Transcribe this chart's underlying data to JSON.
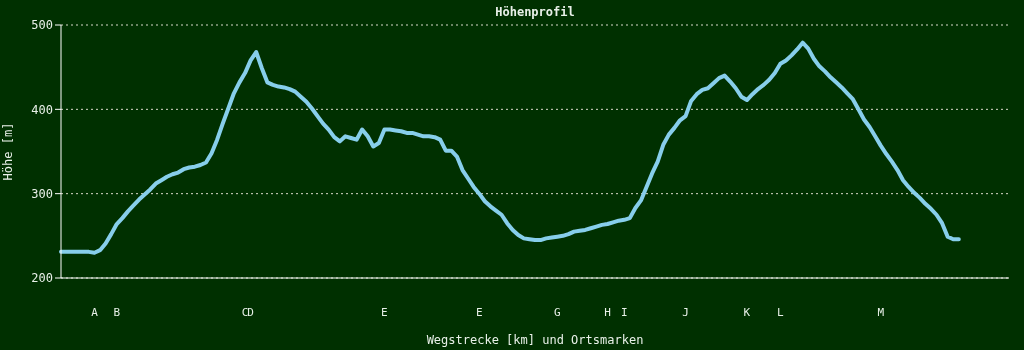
{
  "chart_data": {
    "type": "line",
    "title": "Höhenprofil",
    "xlabel": "Wegstrecke [km] und Ortsmarken",
    "ylabel": "Höhe [m]",
    "categories": [
      null,
      null,
      null,
      null,
      null,
      null,
      "A",
      null,
      null,
      null,
      "B",
      null,
      null,
      null,
      null,
      null,
      null,
      null,
      null,
      null,
      null,
      null,
      null,
      null,
      null,
      null,
      null,
      null,
      null,
      null,
      null,
      null,
      null,
      "C",
      "D",
      null,
      null,
      null,
      null,
      null,
      null,
      null,
      null,
      null,
      null,
      null,
      null,
      null,
      null,
      null,
      null,
      null,
      null,
      null,
      null,
      null,
      null,
      null,
      "E",
      null,
      null,
      null,
      null,
      null,
      null,
      null,
      null,
      null,
      null,
      null,
      null,
      null,
      null,
      null,
      null,
      "E",
      null,
      null,
      null,
      null,
      null,
      null,
      null,
      null,
      null,
      null,
      null,
      null,
      null,
      "G",
      null,
      null,
      null,
      null,
      null,
      null,
      null,
      null,
      "H",
      null,
      null,
      "I",
      null,
      null,
      null,
      null,
      null,
      null,
      null,
      null,
      null,
      null,
      "J",
      null,
      null,
      null,
      null,
      null,
      null,
      null,
      null,
      null,
      null,
      "K",
      null,
      null,
      null,
      null,
      null,
      "L",
      null,
      null,
      null,
      null,
      null,
      null,
      null,
      null,
      null,
      null,
      null,
      null,
      null,
      null,
      null,
      null,
      null,
      "M",
      null,
      null,
      null,
      null,
      null,
      null,
      null,
      null,
      null,
      null,
      null,
      null,
      null,
      null,
      null,
      null,
      null,
      null,
      null,
      null,
      null,
      null,
      null
    ],
    "series": [
      {
        "color": "#87ceeb",
        "values": [
          231,
          231,
          231,
          231,
          231,
          231,
          230,
          233,
          241,
          252,
          264,
          271,
          279,
          286,
          293,
          299,
          305,
          312,
          316,
          320,
          323,
          325,
          329,
          331,
          332,
          334,
          337,
          348,
          364,
          383,
          401,
          419,
          432,
          443,
          458,
          468,
          449,
          432,
          429,
          427,
          426,
          424,
          421,
          415,
          409,
          401,
          392,
          383,
          376,
          367,
          362,
          368,
          366,
          364,
          376,
          368,
          356,
          360,
          376,
          376,
          375,
          374,
          372,
          372,
          370,
          368,
          368,
          367,
          364,
          351,
          351,
          344,
          328,
          318,
          308,
          300,
          291,
          285,
          280,
          275,
          265,
          257,
          251,
          247,
          246,
          245,
          245,
          247,
          248,
          249,
          250,
          252,
          255,
          256,
          257,
          259,
          261,
          263,
          264,
          266,
          268,
          269,
          271,
          283,
          292,
          308,
          324,
          338,
          358,
          370,
          378,
          387,
          392,
          410,
          418,
          423,
          425,
          431,
          437,
          440,
          433,
          425,
          415,
          411,
          418,
          424,
          429,
          435,
          443,
          454,
          458,
          464,
          471,
          479,
          472,
          460,
          451,
          445,
          438,
          432,
          426,
          419,
          412,
          400,
          388,
          379,
          368,
          357,
          347,
          338,
          328,
          316,
          308,
          301,
          295,
          288,
          282,
          275,
          265,
          249,
          246,
          246,
          null,
          null,
          null,
          null,
          null,
          null,
          null,
          null,
          null
        ]
      }
    ],
    "ylim": [
      200,
      500
    ],
    "yticks": [
      200,
      300,
      400,
      500
    ],
    "grid": "y",
    "marker": "none",
    "line_style": "solid"
  }
}
